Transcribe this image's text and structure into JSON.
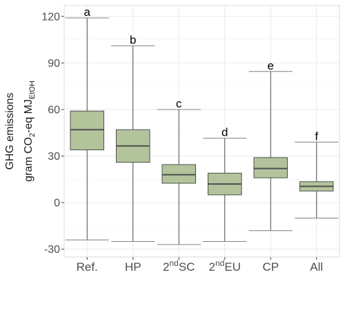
{
  "chart_data": {
    "type": "box",
    "ylabel_line1": "GHG emissions",
    "ylabel_line2": {
      "prefix": "gram CO",
      "sub1": "2",
      "middle": "-eq MJ",
      "sub2": "EtOH"
    },
    "ylim": [
      -35,
      127
    ],
    "yticks": [
      120,
      90,
      60,
      30,
      0,
      -30
    ],
    "ytick_labels": [
      "120",
      "90",
      "60",
      "30",
      "0",
      "-30"
    ],
    "grid": true,
    "colors": {
      "box_fill": "#b3c49c",
      "box_stroke": "#4d4d4d",
      "grid": "#ebebeb",
      "panel_border": "#d9d9d9"
    },
    "categories": [
      {
        "label": "Ref.",
        "sup": "",
        "rest": "",
        "sig": "a",
        "whisker_low": -24,
        "q1": 34,
        "median": 47,
        "q3": 59,
        "whisker_high": 119
      },
      {
        "label": "HP",
        "sup": "",
        "rest": "",
        "sig": "b",
        "whisker_low": -25,
        "q1": 26,
        "median": 36.5,
        "q3": 47,
        "whisker_high": 101
      },
      {
        "label": "2",
        "sup": "nd",
        "rest": "SC",
        "sig": "c",
        "whisker_low": -27,
        "q1": 12.5,
        "median": 18,
        "q3": 24.5,
        "whisker_high": 60
      },
      {
        "label": "2",
        "sup": "nd",
        "rest": "EU",
        "sig": "d",
        "whisker_low": -25,
        "q1": 5,
        "median": 12,
        "q3": 19,
        "whisker_high": 41.5
      },
      {
        "label": "CP",
        "sup": "",
        "rest": "",
        "sig": "e",
        "whisker_low": -18,
        "q1": 16,
        "median": 22,
        "q3": 29,
        "whisker_high": 84.5
      },
      {
        "label": "All",
        "sup": "",
        "rest": "",
        "sig": "f",
        "whisker_low": -10,
        "q1": 7.5,
        "median": 10.5,
        "q3": 13.5,
        "whisker_high": 39
      }
    ]
  }
}
